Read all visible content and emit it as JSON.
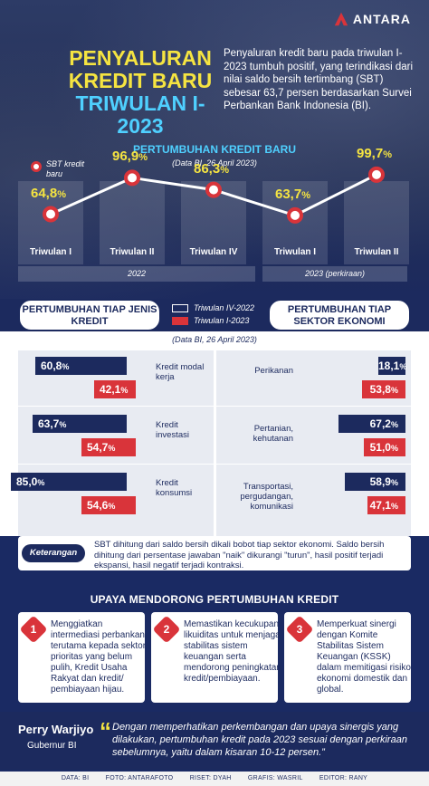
{
  "logo": "ANTARA",
  "title": {
    "line1": "PENYALURAN",
    "line2": "KREDIT BARU",
    "line3": "TRIWULAN I-2023"
  },
  "lead": "Penyaluran kredit baru pada triwulan I-2023 tumbuh positif, yang terindikasi dari nilai saldo bersih tertimbang (SBT) sebesar 63,7 persen berdasarkan Survei Perbankan Bank Indonesia (BI).",
  "chart_data": {
    "type": "line",
    "title": "PERTUMBUHAN KREDIT BARU",
    "subtitle": "(Data BI, 26 April 2023)",
    "legend": "SBT kredit baru",
    "categories": [
      "Triwulan I",
      "Triwulan II",
      "Triwulan IV",
      "Triwulan I",
      "Triwulan II"
    ],
    "values": [
      64.8,
      96.9,
      86.3,
      63.7,
      99.7
    ],
    "value_labels": [
      "64,8",
      "96,9",
      "86,3",
      "63,7",
      "99,7"
    ],
    "unit": "%",
    "groups": [
      {
        "label": "2022"
      },
      {
        "label": "2023 (perkiraan)"
      }
    ],
    "ylim": [
      50,
      110
    ]
  },
  "sections": {
    "left_title": "PERTUMBUHAN TIAP JENIS KREDIT",
    "right_title": "PERTUMBUHAN TIAP SEKTOR EKONOMI",
    "legend_navy": "Triwulan IV-2022",
    "legend_red": "Triwulan I-2023",
    "source": "(Data BI, 26 April 2023)"
  },
  "jenis_kredit": [
    {
      "label": "Kredit modal kerja",
      "q4": "60,8",
      "q1": "42,1",
      "q4_value": 60.8,
      "q1_value": 42.1
    },
    {
      "label": "Kredit investasi",
      "q4": "63,7",
      "q1": "54,7",
      "q4_value": 63.7,
      "q1_value": 54.7
    },
    {
      "label": "Kredit konsumsi",
      "q4": "85,0",
      "q1": "54,6",
      "q4_value": 85.0,
      "q1_value": 54.6
    }
  ],
  "sektor": [
    {
      "label": "Perikanan",
      "q4": "18,1",
      "q1": "53,8",
      "q4_value": 18.1,
      "q1_value": 53.8
    },
    {
      "label": "Pertanian, kehutanan",
      "q4": "67,2",
      "q1": "51,0",
      "q4_value": 67.2,
      "q1_value": 51.0
    },
    {
      "label": "Transportasi, pergudangan, komunikasi",
      "q4": "58,9",
      "q1": "47,1",
      "q4_value": 58.9,
      "q1_value": 47.1
    }
  ],
  "percent": "%",
  "keterangan": {
    "label": "Keterangan",
    "text": "SBT dihitung dari saldo bersih dikali bobot tiap sektor ekonomi. Saldo bersih dihitung dari persentase jawaban \"naik\" dikurangi \"turun\", hasil positif terjadi ekspansi, hasil negatif terjadi kontraksi."
  },
  "upaya": {
    "title": "UPAYA MENDORONG PERTUMBUHAN KREDIT",
    "items": [
      {
        "num": "1",
        "text": "Menggiatkan intermediasi perbankan, terutama kepada sektor prioritas yang belum pulih, Kredit Usaha Rakyat dan kredit/ pembiayaan hijau."
      },
      {
        "num": "2",
        "text": "Memastikan kecukupan likuiditas untuk menjaga stabilitas sistem keuangan serta mendorong peningkatan kredit/pembiayaan."
      },
      {
        "num": "3",
        "text": "Memperkuat sinergi dengan Komite Stabilitas Sistem Keuangan (KSSK) dalam memitigasi risiko ekonomi domestik dan global."
      }
    ]
  },
  "quote": {
    "name": "Perry Warjiyo",
    "role": "Gubernur BI",
    "mark": "“",
    "text": "Dengan memperhatikan perkembangan dan upaya sinergis yang dilakukan, pertumbuhan kredit pada 2023 sesuai dengan perkiraan sebelumnya, yaitu dalam kisaran 10-12 persen.”"
  },
  "footer": {
    "data": "DATA: BI",
    "foto": "FOTO: ANTARAFOTO",
    "riset": "RISET: DYAH",
    "grafis": "GRAFIS: WASRIL",
    "editor": "EDITOR: RANY"
  },
  "colors": {
    "navy": "#1c2a5e",
    "red": "#d9343a",
    "yellow": "#f5e441",
    "cyan": "#4fd0ff"
  }
}
